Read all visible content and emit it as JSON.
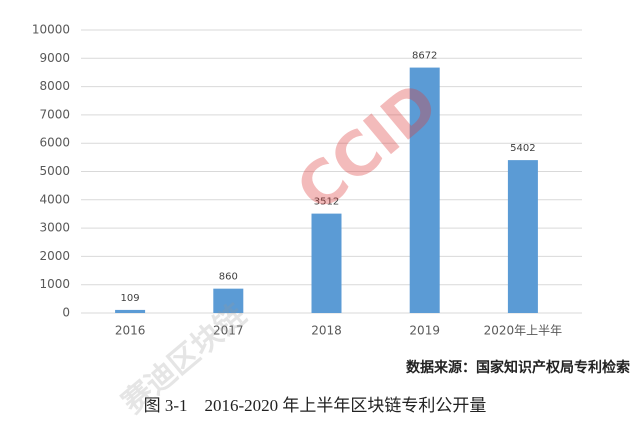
{
  "chart_data": {
    "type": "bar",
    "categories": [
      "2016",
      "2017",
      "2018",
      "2019",
      "2020年上半年"
    ],
    "values": [
      109,
      860,
      3512,
      8672,
      5402
    ],
    "color": "#5b9bd5",
    "ylim": [
      0,
      10000
    ],
    "yticks": [
      0,
      1000,
      2000,
      3000,
      4000,
      5000,
      6000,
      7000,
      8000,
      9000,
      10000
    ],
    "grid": true,
    "source": "数据来源：国家知识产权局专利检索",
    "caption": "图 3-1　2016-2020 年上半年区块链专利公开量",
    "watermarks": [
      "CCID",
      "赛迪区块链"
    ]
  }
}
